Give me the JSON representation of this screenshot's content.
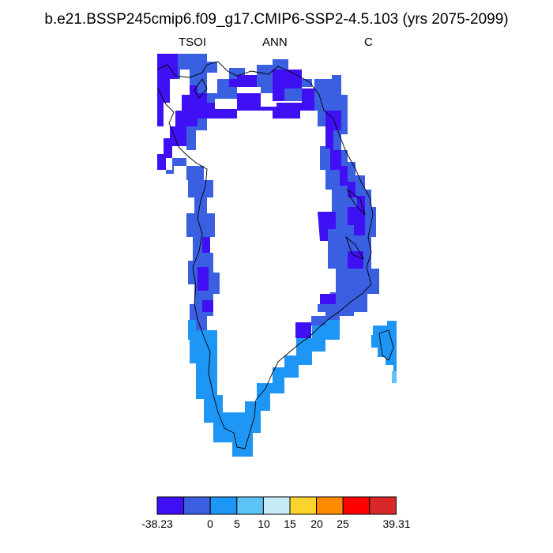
{
  "title": "b.e21.BSSP245cmip6.f09_g17.CMIP6-SSP2-4.5.103 (yrs 2075-2099)",
  "variable": "TSOI",
  "period": "ANN",
  "units": "C",
  "colors": {
    "c1": "#4010f5",
    "c2": "#3a5fe0",
    "c3": "#1e96f6",
    "c4": "#5bc3f6",
    "c5": "#c6eaf6",
    "c6": "#fcd22c",
    "c7": "#ff8c00",
    "c8": "#ff0000",
    "c9": "#d82828",
    "coast": "#000000"
  },
  "colorbar": {
    "tick_labels": [
      "-38.23",
      "0",
      "5",
      "10",
      "15",
      "20",
      "25",
      "39.31"
    ],
    "color_keys": [
      "c1",
      "c2",
      "c3",
      "c4",
      "c5",
      "c6",
      "c7",
      "c8",
      "c9"
    ]
  }
}
